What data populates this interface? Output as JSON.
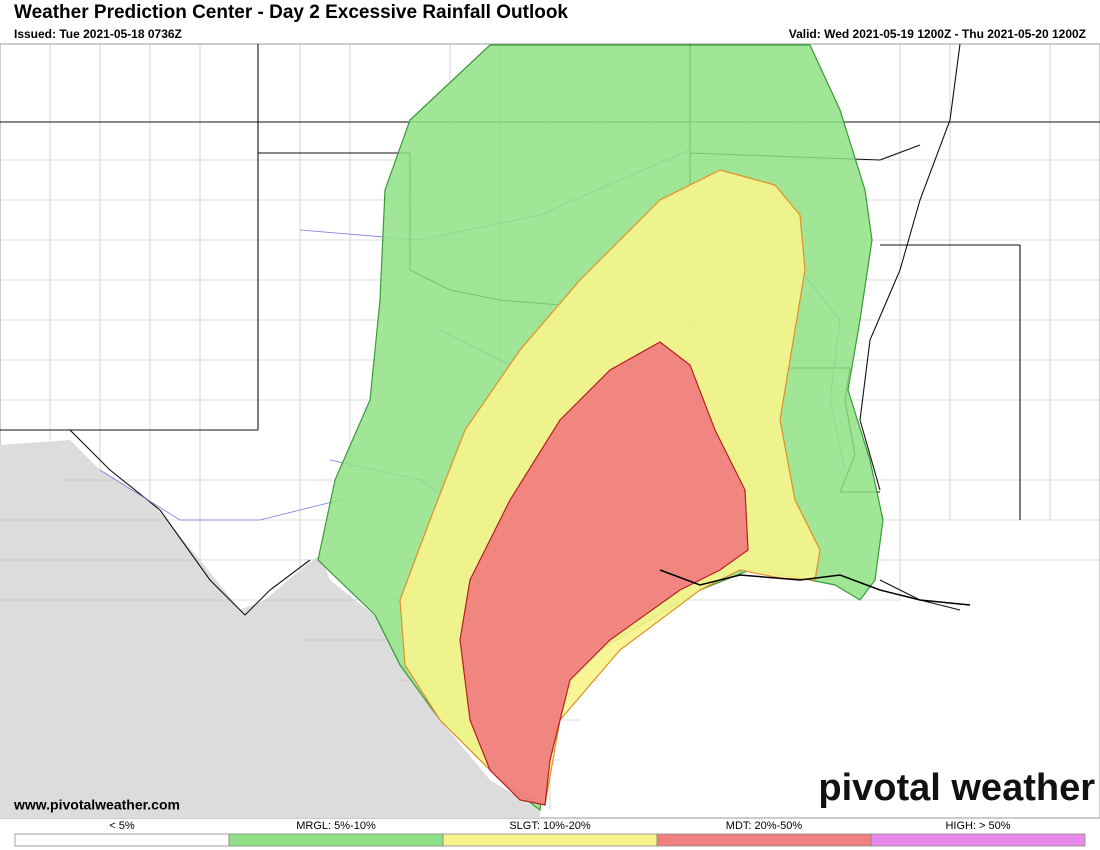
{
  "header": {
    "title": "Weather Prediction Center - Day 2 Excessive Rainfall Outlook",
    "issued": "Issued: Tue 2021-05-18 0736Z",
    "valid": "Valid: Wed 2021-05-19 1200Z - Thu 2021-05-20 1200Z"
  },
  "footer": {
    "url": "www.pivotalweather.com",
    "logo": "pivotal weather"
  },
  "legend": {
    "items": [
      {
        "label": "< 5%",
        "color": "#ffffff"
      },
      {
        "label": "MRGL: 5%-10%",
        "color": "#90e085"
      },
      {
        "label": "SLGT: 10%-20%",
        "color": "#f7f48c"
      },
      {
        "label": "MDT: 20%-50%",
        "color": "#f08080"
      },
      {
        "label": "HIGH: > 50%",
        "color": "#ea88ea"
      }
    ]
  }
}
